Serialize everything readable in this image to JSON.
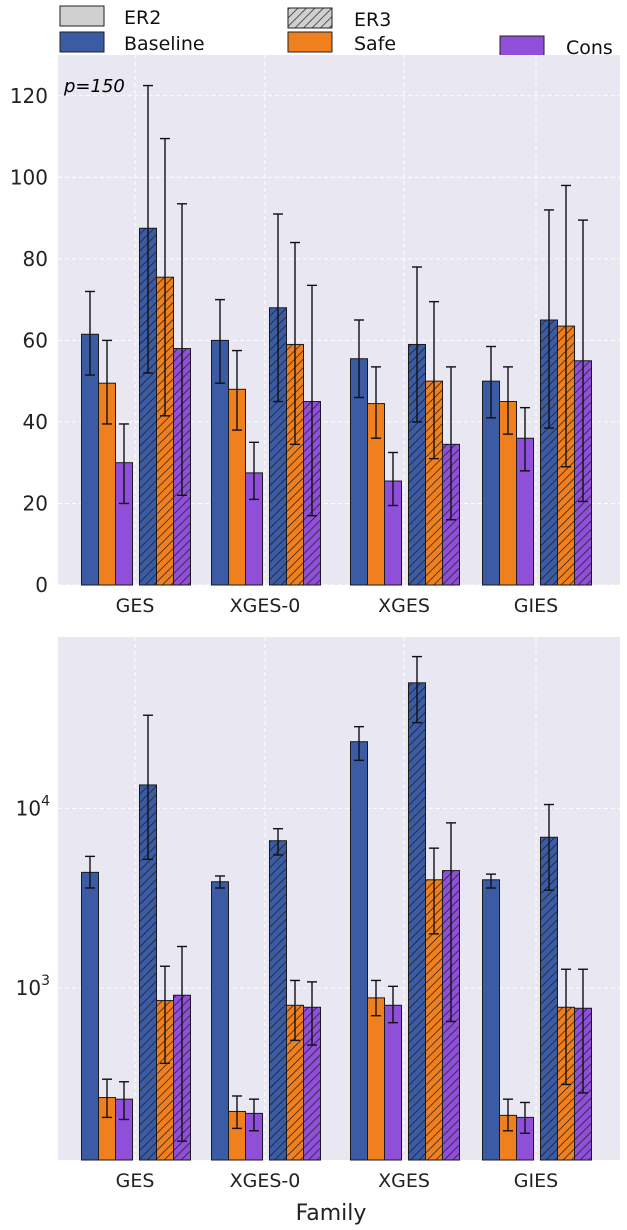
{
  "legend": {
    "items": [
      {
        "label": "ER2",
        "style": "plain",
        "color": "#d0d0d0"
      },
      {
        "label": "ER3",
        "style": "hatched",
        "color": "#d0d0d0"
      },
      {
        "label": "Baseline",
        "style": "plain",
        "color": "#3b5ba5"
      },
      {
        "label": "Safe",
        "style": "plain",
        "color": "#f07f1e"
      },
      {
        "label": "Cons",
        "style": "plain",
        "color": "#8f4fd8"
      }
    ]
  },
  "colors": {
    "background": "#e9e7f2",
    "grid": "#ffffff",
    "Baseline": "#3b5ba5",
    "Safe": "#f07f1e",
    "Cons": "#8f4fd8"
  },
  "chart_data": [
    {
      "type": "bar",
      "annotation": "p=150",
      "categories": [
        "GES",
        "XGES-0",
        "XGES",
        "GIES"
      ],
      "ylim": [
        0,
        130
      ],
      "yscale": "linear",
      "yticks": [
        0,
        20,
        40,
        60,
        80,
        100,
        120
      ],
      "grid": true,
      "xlabel": "",
      "ylabel": "",
      "series": [
        {
          "method": "Baseline",
          "density": "ER2",
          "values": [
            61.5,
            60,
            55.5,
            50
          ],
          "err_low": [
            51.5,
            49.5,
            46,
            41
          ],
          "err_high": [
            72,
            70,
            65,
            58.5
          ]
        },
        {
          "method": "Safe",
          "density": "ER2",
          "values": [
            49.5,
            48,
            44.5,
            45
          ],
          "err_low": [
            39.5,
            38,
            36,
            37
          ],
          "err_high": [
            60,
            57.5,
            53.5,
            53.5
          ]
        },
        {
          "method": "Cons",
          "density": "ER2",
          "values": [
            30,
            27.5,
            25.5,
            36
          ],
          "err_low": [
            20,
            21,
            19.5,
            28
          ],
          "err_high": [
            39.5,
            35,
            32.5,
            43.5
          ]
        },
        {
          "method": "Baseline",
          "density": "ER3",
          "values": [
            87.5,
            68,
            59,
            65
          ],
          "err_low": [
            52,
            45,
            40,
            38.5
          ],
          "err_high": [
            122.5,
            91,
            78,
            92
          ]
        },
        {
          "method": "Safe",
          "density": "ER3",
          "values": [
            75.5,
            59,
            50,
            63.5
          ],
          "err_low": [
            41.5,
            34.5,
            31,
            29
          ],
          "err_high": [
            109.5,
            84,
            69.5,
            98
          ]
        },
        {
          "method": "Cons",
          "density": "ER3",
          "values": [
            58,
            45,
            34.5,
            55
          ],
          "err_low": [
            22,
            17,
            16,
            20.5
          ],
          "err_high": [
            93.5,
            73.5,
            53.5,
            89.5
          ]
        }
      ]
    },
    {
      "type": "bar",
      "categories": [
        "GES",
        "XGES-0",
        "XGES",
        "GIES"
      ],
      "ylim": [
        110,
        90000
      ],
      "yscale": "log",
      "yticks": [
        1000,
        10000
      ],
      "ytick_labels": [
        {
          "base": "10",
          "exp": "3"
        },
        {
          "base": "10",
          "exp": "4"
        }
      ],
      "grid": true,
      "xlabel": "Family",
      "ylabel": "",
      "series": [
        {
          "method": "Baseline",
          "density": "ER2",
          "values": [
            4400,
            3900,
            23500,
            4000
          ],
          "err_low": [
            3600,
            3600,
            18500,
            3600
          ],
          "err_high": [
            5400,
            4200,
            28500,
            4300
          ]
        },
        {
          "method": "Safe",
          "density": "ER2",
          "values": [
            245,
            205,
            880,
            195
          ],
          "err_low": [
            190,
            165,
            700,
            160
          ],
          "err_high": [
            310,
            250,
            1100,
            240
          ]
        },
        {
          "method": "Cons",
          "density": "ER2",
          "values": [
            240,
            200,
            800,
            190
          ],
          "err_low": [
            185,
            160,
            640,
            155
          ],
          "err_high": [
            300,
            240,
            1020,
            230
          ]
        },
        {
          "method": "Baseline",
          "density": "ER3",
          "values": [
            13500,
            6600,
            50000,
            6900
          ],
          "err_low": [
            5200,
            5500,
            30000,
            3500
          ],
          "err_high": [
            33000,
            7700,
            70000,
            10500
          ]
        },
        {
          "method": "Safe",
          "density": "ER3",
          "values": [
            850,
            800,
            4000,
            780
          ],
          "err_low": [
            380,
            510,
            2000,
            290
          ],
          "err_high": [
            1320,
            1100,
            6000,
            1270
          ]
        },
        {
          "method": "Cons",
          "density": "ER3",
          "values": [
            910,
            780,
            4500,
            770
          ],
          "err_low": [
            140,
            480,
            650,
            260
          ],
          "err_high": [
            1700,
            1080,
            8300,
            1270
          ]
        }
      ]
    }
  ]
}
